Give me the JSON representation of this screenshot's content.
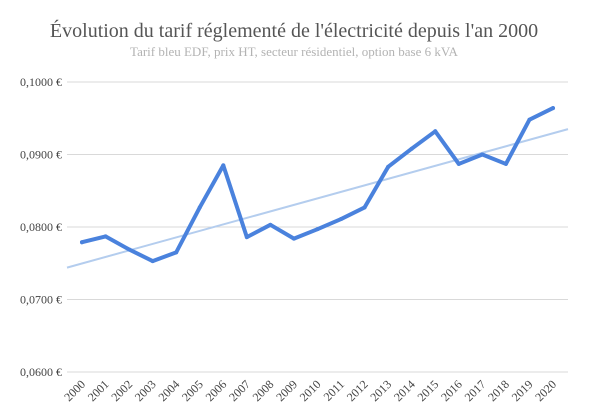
{
  "chart_data": {
    "type": "line",
    "title": "Évolution du tarif réglementé de l'électricité depuis l'an 2000",
    "subtitle": "Tarif bleu EDF, prix HT, secteur résidentiel, option base 6 kVA",
    "categories": [
      "2000",
      "2001",
      "2002",
      "2003",
      "2004",
      "2005",
      "2006",
      "2007",
      "2008",
      "2009",
      "2010",
      "2011",
      "2012",
      "2013",
      "2014",
      "2015",
      "2016",
      "2017",
      "2018",
      "2019",
      "2020"
    ],
    "y_tick_labels": [
      "0,0600 €",
      "0,0700 €",
      "0,0800 €",
      "0,0900 €",
      "0,1000 €"
    ],
    "y_ticks": [
      0.06,
      0.07,
      0.08,
      0.09,
      0.1
    ],
    "ylim": [
      0.06,
      0.1
    ],
    "grid": true,
    "series": [
      {
        "values": [
          0.0779,
          0.0787,
          0.0769,
          0.0753,
          0.0765,
          0.0827,
          0.0885,
          0.0786,
          0.0803,
          0.0784,
          0.0797,
          0.0811,
          0.0827,
          0.0883,
          0.0908,
          0.0932,
          0.0887,
          0.09,
          0.0887,
          0.0948,
          0.0964
        ],
        "color": "#4a82dd"
      }
    ],
    "trendline": {
      "type": "linear",
      "start": 0.0744,
      "end": 0.0935,
      "color": "#b4cdee"
    }
  }
}
